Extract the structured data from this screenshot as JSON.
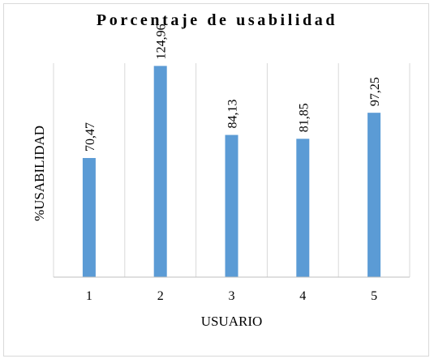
{
  "chart_data": {
    "type": "bar",
    "title": "Porcentaje de usabilidad",
    "xlabel": "USUARIO",
    "ylabel": "%USABILIDAD",
    "categories": [
      "1",
      "2",
      "3",
      "4",
      "5"
    ],
    "values": [
      70.47,
      124.96,
      84.13,
      81.85,
      97.25
    ],
    "value_labels": [
      "70,47",
      "124,96",
      "84,13",
      "81,85",
      "97,25"
    ],
    "ylim": [
      0,
      140
    ],
    "vertical_grid": true,
    "bar_color": "#5b9bd5",
    "grid_color": "#d9d9d9",
    "axis_color": "#bfbfbf"
  }
}
